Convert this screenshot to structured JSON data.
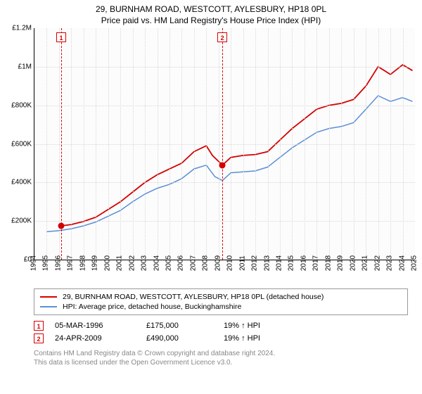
{
  "title": "29, BURNHAM ROAD, WESTCOTT, AYLESBURY, HP18 0PL",
  "subtitle": "Price paid vs. HM Land Registry's House Price Index (HPI)",
  "chart": {
    "type": "line",
    "background_color": "#fcfcfc",
    "grid_color": "#d8d8d8",
    "axis_color": "#000000",
    "xlim": [
      1994,
      2025
    ],
    "ylim": [
      0,
      1200000
    ],
    "y_ticks": [
      {
        "v": 0,
        "label": "£0"
      },
      {
        "v": 200000,
        "label": "£200K"
      },
      {
        "v": 400000,
        "label": "£400K"
      },
      {
        "v": 600000,
        "label": "£600K"
      },
      {
        "v": 800000,
        "label": "£800K"
      },
      {
        "v": 1000000,
        "label": "£1M"
      },
      {
        "v": 1200000,
        "label": "£1.2M"
      }
    ],
    "x_ticks": [
      1994,
      1995,
      1996,
      1997,
      1998,
      1999,
      2000,
      2001,
      2002,
      2003,
      2004,
      2005,
      2006,
      2007,
      2008,
      2009,
      2010,
      2011,
      2012,
      2013,
      2014,
      2015,
      2016,
      2017,
      2018,
      2019,
      2020,
      2021,
      2022,
      2023,
      2024,
      2025
    ],
    "series": [
      {
        "name": "property",
        "label": "29, BURNHAM ROAD, WESTCOTT, AYLESBURY, HP18 0PL (detached house)",
        "color": "#d40000",
        "line_width": 1.8,
        "data": [
          [
            1996.18,
            175000
          ],
          [
            1997,
            182000
          ],
          [
            1998,
            198000
          ],
          [
            1999,
            220000
          ],
          [
            2000,
            260000
          ],
          [
            2001,
            300000
          ],
          [
            2002,
            350000
          ],
          [
            2003,
            400000
          ],
          [
            2004,
            440000
          ],
          [
            2005,
            470000
          ],
          [
            2006,
            500000
          ],
          [
            2007,
            560000
          ],
          [
            2008,
            590000
          ],
          [
            2008.5,
            540000
          ],
          [
            2009.31,
            490000
          ],
          [
            2010,
            530000
          ],
          [
            2011,
            540000
          ],
          [
            2012,
            545000
          ],
          [
            2013,
            560000
          ],
          [
            2014,
            620000
          ],
          [
            2015,
            680000
          ],
          [
            2016,
            730000
          ],
          [
            2017,
            780000
          ],
          [
            2018,
            800000
          ],
          [
            2019,
            810000
          ],
          [
            2020,
            830000
          ],
          [
            2021,
            900000
          ],
          [
            2022,
            1000000
          ],
          [
            2023,
            960000
          ],
          [
            2024,
            1010000
          ],
          [
            2024.8,
            980000
          ]
        ]
      },
      {
        "name": "hpi",
        "label": "HPI: Average price, detached house, Buckinghamshire",
        "color": "#5b8fd6",
        "line_width": 1.5,
        "data": [
          [
            1995,
            145000
          ],
          [
            1996,
            150000
          ],
          [
            1997,
            160000
          ],
          [
            1998,
            175000
          ],
          [
            1999,
            195000
          ],
          [
            2000,
            225000
          ],
          [
            2001,
            255000
          ],
          [
            2002,
            300000
          ],
          [
            2003,
            340000
          ],
          [
            2004,
            370000
          ],
          [
            2005,
            390000
          ],
          [
            2006,
            420000
          ],
          [
            2007,
            470000
          ],
          [
            2008,
            490000
          ],
          [
            2008.7,
            430000
          ],
          [
            2009.31,
            410000
          ],
          [
            2010,
            450000
          ],
          [
            2011,
            455000
          ],
          [
            2012,
            460000
          ],
          [
            2013,
            480000
          ],
          [
            2014,
            530000
          ],
          [
            2015,
            580000
          ],
          [
            2016,
            620000
          ],
          [
            2017,
            660000
          ],
          [
            2018,
            680000
          ],
          [
            2019,
            690000
          ],
          [
            2020,
            710000
          ],
          [
            2021,
            780000
          ],
          [
            2022,
            850000
          ],
          [
            2023,
            820000
          ],
          [
            2024,
            840000
          ],
          [
            2024.8,
            820000
          ]
        ]
      }
    ],
    "markers": [
      {
        "idx": "1",
        "x": 1996.18,
        "color": "#d40000"
      },
      {
        "idx": "2",
        "x": 2009.31,
        "color": "#d40000"
      }
    ],
    "points": [
      {
        "x": 1996.18,
        "y": 175000,
        "color": "#d40000"
      },
      {
        "x": 2009.31,
        "y": 490000,
        "color": "#d40000"
      }
    ]
  },
  "legend": [
    {
      "color": "#d40000",
      "label": "29, BURNHAM ROAD, WESTCOTT, AYLESBURY, HP18 0PL (detached house)"
    },
    {
      "color": "#5b8fd6",
      "label": "HPI: Average price, detached house, Buckinghamshire"
    }
  ],
  "transactions": [
    {
      "idx": "1",
      "color": "#d40000",
      "date": "05-MAR-1996",
      "price": "£175,000",
      "pct": "19% ↑ HPI"
    },
    {
      "idx": "2",
      "color": "#d40000",
      "date": "24-APR-2009",
      "price": "£490,000",
      "pct": "19% ↑ HPI"
    }
  ],
  "footnote_line1": "Contains HM Land Registry data © Crown copyright and database right 2024.",
  "footnote_line2": "This data is licensed under the Open Government Licence v3.0."
}
